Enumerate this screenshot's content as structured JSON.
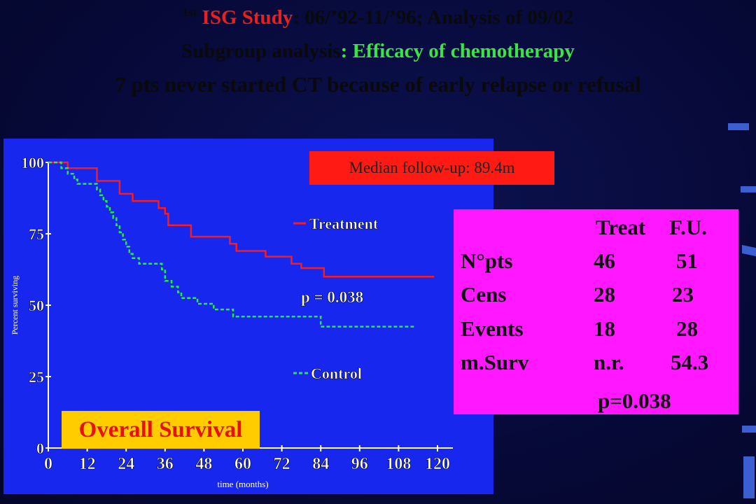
{
  "header": {
    "line1_sup": "1st",
    "line1_study": "ISG Study",
    "line1_rest": ": 06/’92-11/’96;  Analysis of 09/02",
    "line2_label": "Subgroup analysis",
    "line2_rest": ": Efficacy of chemotherapy",
    "line3": "7 pts never started CT because of early relapse or refusal"
  },
  "median_box": "Median follow-up: 89.4m",
  "overall_box": "Overall Survival",
  "stats": {
    "columns": [
      "Treat",
      "F.U."
    ],
    "rows": [
      {
        "label": "N°pts",
        "treat": "46",
        "fu": "51"
      },
      {
        "label": "Cens",
        "treat": "28",
        "fu": "23"
      },
      {
        "label": "Events",
        "treat": "18",
        "fu": "28"
      },
      {
        "label": "m.Surv",
        "treat": "n.r.",
        "fu": "54.3"
      }
    ],
    "p": "p=0.038"
  },
  "chart_data": {
    "type": "line",
    "xlabel": "time (months)",
    "ylabel": "Percent surviving",
    "xlim": [
      0,
      120
    ],
    "ylim": [
      0,
      100
    ],
    "x_ticks": [
      "0",
      "12",
      "24",
      "36",
      "48",
      "60",
      "72",
      "84",
      "96",
      "108",
      "120"
    ],
    "y_ticks": [
      "0",
      "25",
      "50",
      "75",
      "100"
    ],
    "annotation": "p = 0.038",
    "series": [
      {
        "name": "Treatment",
        "color": "#ff1a14",
        "style": "solid",
        "points": [
          [
            0,
            100
          ],
          [
            6,
            100
          ],
          [
            6,
            98
          ],
          [
            15,
            98
          ],
          [
            15,
            93.5
          ],
          [
            22,
            93.5
          ],
          [
            22,
            89
          ],
          [
            26,
            89
          ],
          [
            26,
            86.5
          ],
          [
            34,
            86.5
          ],
          [
            34,
            84
          ],
          [
            36,
            84
          ],
          [
            36,
            82
          ],
          [
            37,
            82
          ],
          [
            37,
            78
          ],
          [
            44,
            78
          ],
          [
            44,
            74
          ],
          [
            56,
            74
          ],
          [
            56,
            71.5
          ],
          [
            58,
            71.5
          ],
          [
            58,
            69
          ],
          [
            67,
            69
          ],
          [
            67,
            67
          ],
          [
            75,
            67
          ],
          [
            75,
            64.5
          ],
          [
            78,
            64.5
          ],
          [
            78,
            63
          ],
          [
            85,
            63
          ],
          [
            85,
            60
          ],
          [
            119,
            60
          ]
        ]
      },
      {
        "name": "Control",
        "color": "#22ee33",
        "style": "dashed",
        "points": [
          [
            0,
            100
          ],
          [
            4,
            100
          ],
          [
            4,
            98
          ],
          [
            6,
            98
          ],
          [
            6,
            96
          ],
          [
            8,
            96
          ],
          [
            8,
            94
          ],
          [
            9,
            94
          ],
          [
            9,
            92.5
          ],
          [
            15,
            92.5
          ],
          [
            15,
            90.5
          ],
          [
            16,
            90.5
          ],
          [
            16,
            88.5
          ],
          [
            17,
            88.5
          ],
          [
            17,
            86.5
          ],
          [
            18,
            86.5
          ],
          [
            18,
            84.5
          ],
          [
            19,
            84.5
          ],
          [
            19,
            82.5
          ],
          [
            20,
            82.5
          ],
          [
            20,
            80.5
          ],
          [
            21,
            80.5
          ],
          [
            21,
            78
          ],
          [
            22,
            78
          ],
          [
            22,
            75.5
          ],
          [
            23,
            75.5
          ],
          [
            23,
            73
          ],
          [
            24,
            73
          ],
          [
            24,
            70.5
          ],
          [
            25,
            70.5
          ],
          [
            25,
            68
          ],
          [
            26,
            68
          ],
          [
            26,
            66.5
          ],
          [
            28,
            66.5
          ],
          [
            28,
            64.5
          ],
          [
            35,
            64.5
          ],
          [
            35,
            62.5
          ],
          [
            36,
            62.5
          ],
          [
            36,
            58.5
          ],
          [
            38,
            58.5
          ],
          [
            38,
            56.5
          ],
          [
            40,
            56.5
          ],
          [
            40,
            54.5
          ],
          [
            41,
            54.5
          ],
          [
            41,
            52.5
          ],
          [
            46,
            52.5
          ],
          [
            46,
            50.5
          ],
          [
            51,
            50.5
          ],
          [
            51,
            48.5
          ],
          [
            57,
            48.5
          ],
          [
            57,
            46
          ],
          [
            84,
            46
          ],
          [
            84,
            42.5
          ],
          [
            113,
            42.5
          ]
        ]
      }
    ]
  }
}
